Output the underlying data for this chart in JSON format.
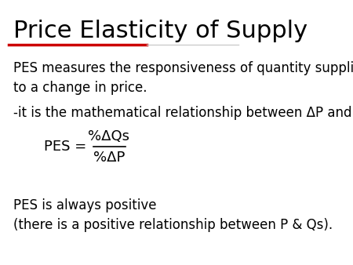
{
  "title": "Price Elasticity of Supply",
  "title_fontsize": 22,
  "bg_color": "#ffffff",
  "line1_color": "#cc0000",
  "line2_color": "#cccccc",
  "text_color": "#000000",
  "line1": "PES measures the responsiveness of quantity supplied\nto a change in price.",
  "line2": "-it is the mathematical relationship between ΔP and ΔQs",
  "formula_left": "PES = ",
  "formula_numerator": "%ΔQs",
  "formula_denominator": "%ΔP",
  "line3": "PES is always positive\n(there is a positive relationship between P & Qs).",
  "body_fontsize": 12,
  "formula_fontsize": 13
}
